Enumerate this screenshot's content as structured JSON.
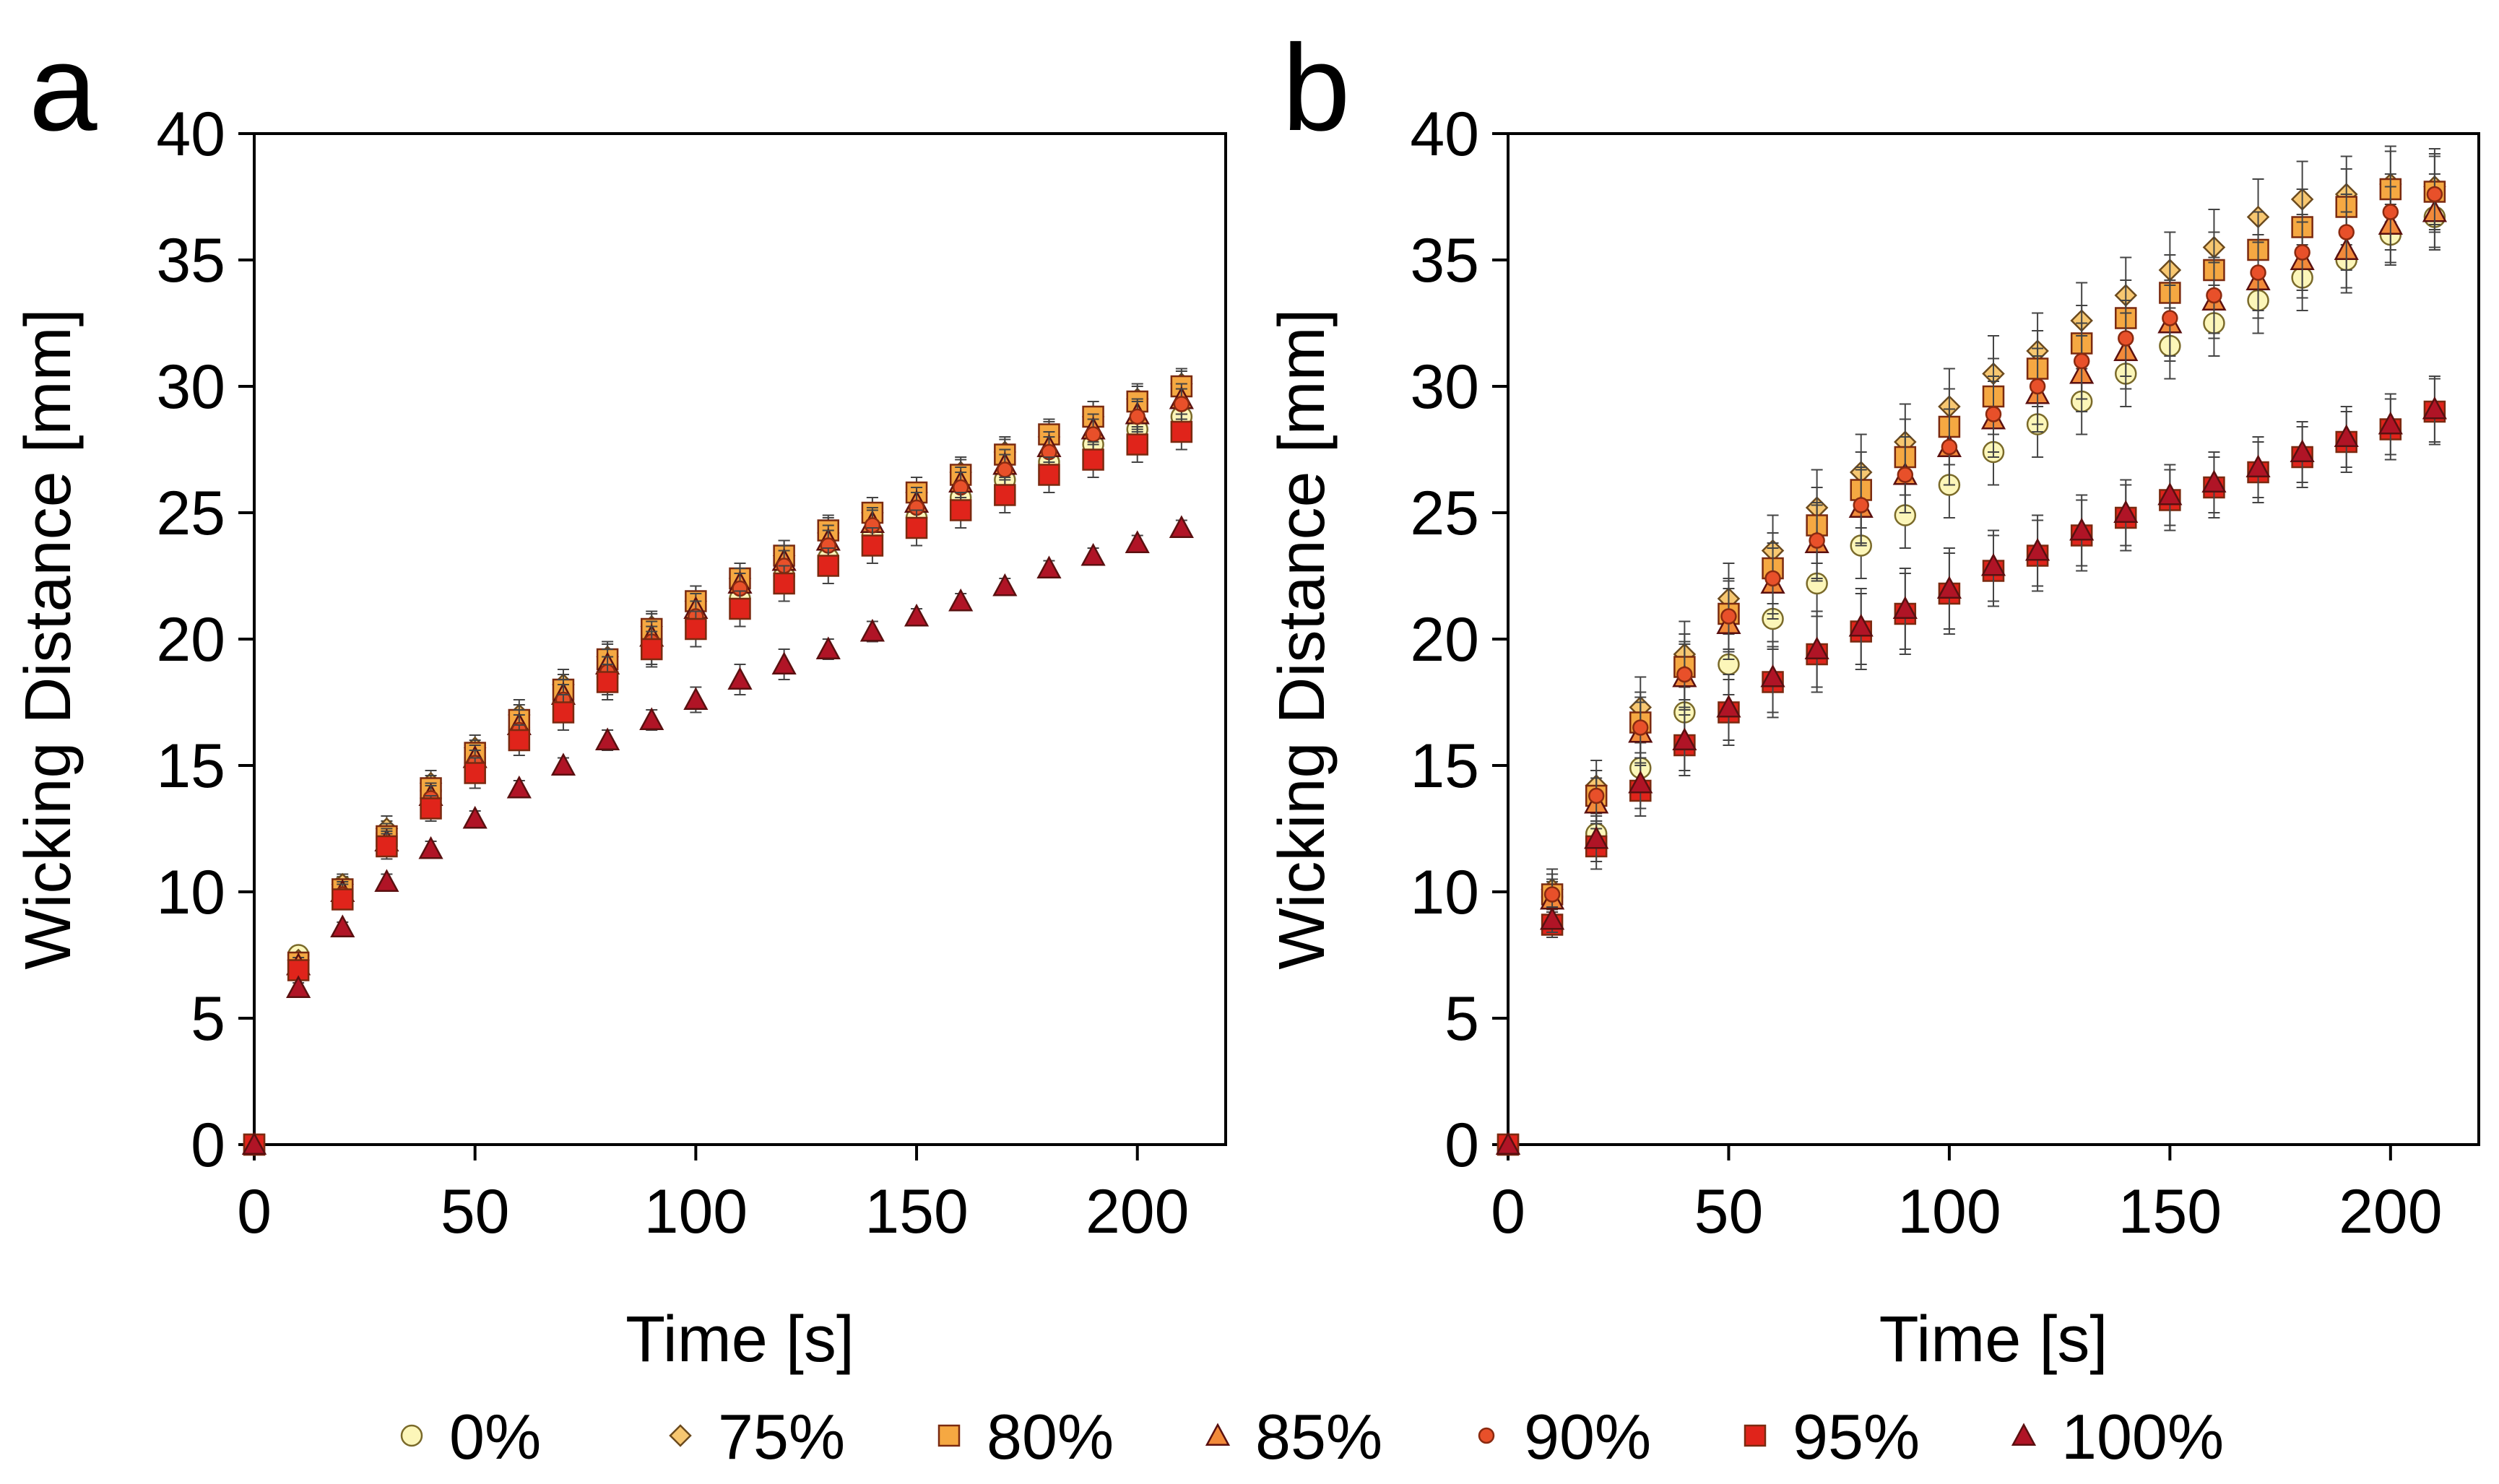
{
  "legend_items": [
    {
      "label": "0%",
      "marker": "circle",
      "color": "#fcf6b9"
    },
    {
      "label": "75%",
      "marker": "diamond",
      "color": "#f7c771"
    },
    {
      "label": "80%",
      "marker": "square",
      "color": "#f5a842"
    },
    {
      "label": "85%",
      "marker": "triangle",
      "color": "#f28a3a"
    },
    {
      "label": "90%",
      "marker": "small-circle",
      "color": "#e8502a"
    },
    {
      "label": "95%",
      "marker": "square",
      "color": "#e0241b"
    },
    {
      "label": "100%",
      "marker": "triangle",
      "color": "#b01426"
    }
  ],
  "chart_data": [
    {
      "type": "scatter",
      "panel_label": "a",
      "title": "",
      "xlabel": "Time [s]",
      "ylabel": "Wicking Distance [mm]",
      "xlim": [
        0,
        220
      ],
      "ylim": [
        0,
        40
      ],
      "xticks": [
        0,
        50,
        100,
        150,
        200
      ],
      "yticks": [
        0,
        5,
        10,
        15,
        20,
        25,
        30,
        35,
        40
      ],
      "x": [
        0,
        10,
        20,
        30,
        40,
        50,
        60,
        70,
        80,
        90,
        100,
        110,
        120,
        130,
        140,
        150,
        160,
        170,
        180,
        190,
        200,
        210
      ],
      "series": [
        {
          "name": "0%",
          "values": [
            0,
            7.5,
            10.2,
            12.3,
            14.0,
            15.3,
            16.5,
            17.5,
            18.5,
            19.7,
            20.7,
            21.6,
            22.5,
            23.2,
            24.1,
            24.8,
            25.6,
            26.3,
            27.0,
            27.7,
            28.3,
            28.8
          ],
          "error": [
            0,
            0.3,
            0.4,
            0.5,
            0.5,
            0.6,
            0.6,
            0.6,
            0.7,
            0.7,
            0.7,
            0.7,
            0.7,
            0.7,
            0.7,
            0.7,
            0.7,
            0.7,
            0.7,
            0.7,
            0.7,
            0.7
          ]
        },
        {
          "name": "75%",
          "values": [
            0,
            7.3,
            10.3,
            12.5,
            14.3,
            15.7,
            17.0,
            18.2,
            19.3,
            20.5,
            21.5,
            22.4,
            23.3,
            24.2,
            25.0,
            25.8,
            26.6,
            27.4,
            28.0,
            28.8,
            29.5,
            30.1
          ],
          "error": [
            0,
            0.3,
            0.4,
            0.5,
            0.5,
            0.5,
            0.6,
            0.6,
            0.6,
            0.6,
            0.6,
            0.6,
            0.6,
            0.6,
            0.6,
            0.6,
            0.6,
            0.6,
            0.6,
            0.6,
            0.6,
            0.6
          ]
        },
        {
          "name": "80%",
          "values": [
            0,
            7.2,
            10.1,
            12.2,
            14.1,
            15.5,
            16.8,
            18.0,
            19.2,
            20.4,
            21.5,
            22.4,
            23.3,
            24.3,
            25.0,
            25.8,
            26.5,
            27.3,
            28.1,
            28.8,
            29.4,
            30.0
          ],
          "error": [
            0,
            0.3,
            0.4,
            0.5,
            0.5,
            0.5,
            0.6,
            0.6,
            0.6,
            0.6,
            0.6,
            0.6,
            0.6,
            0.6,
            0.6,
            0.6,
            0.6,
            0.6,
            0.6,
            0.6,
            0.6,
            0.6
          ]
        },
        {
          "name": "85%",
          "values": [
            0,
            7.1,
            10.0,
            12.0,
            13.8,
            15.3,
            16.6,
            17.8,
            19.0,
            20.1,
            21.2,
            22.2,
            23.1,
            23.9,
            24.6,
            25.4,
            26.2,
            26.9,
            27.6,
            28.3,
            28.9,
            29.5
          ],
          "error": [
            0,
            0.3,
            0.4,
            0.5,
            0.5,
            0.5,
            0.6,
            0.6,
            0.6,
            0.6,
            0.6,
            0.6,
            0.6,
            0.6,
            0.6,
            0.6,
            0.6,
            0.6,
            0.6,
            0.6,
            0.6,
            0.6
          ]
        },
        {
          "name": "90%",
          "values": [
            0,
            7.0,
            9.9,
            11.9,
            13.7,
            15.1,
            16.4,
            17.6,
            18.7,
            19.9,
            20.9,
            22.0,
            22.9,
            23.7,
            24.5,
            25.2,
            26.0,
            26.7,
            27.4,
            28.1,
            28.8,
            29.3
          ],
          "error": [
            0,
            0.3,
            0.4,
            0.5,
            0.5,
            0.5,
            0.6,
            0.6,
            0.6,
            0.6,
            0.6,
            0.6,
            0.6,
            0.6,
            0.6,
            0.6,
            0.6,
            0.6,
            0.6,
            0.6,
            0.6,
            0.6
          ]
        },
        {
          "name": "95%",
          "values": [
            0,
            6.9,
            9.7,
            11.8,
            13.3,
            14.7,
            16.0,
            17.1,
            18.3,
            19.6,
            20.4,
            21.2,
            22.2,
            22.9,
            23.7,
            24.4,
            25.1,
            25.7,
            26.5,
            27.1,
            27.7,
            28.2
          ],
          "error": [
            0,
            0.3,
            0.4,
            0.5,
            0.5,
            0.6,
            0.6,
            0.7,
            0.7,
            0.7,
            0.7,
            0.7,
            0.7,
            0.7,
            0.7,
            0.7,
            0.7,
            0.7,
            0.7,
            0.7,
            0.7,
            0.7
          ]
        },
        {
          "name": "100%",
          "values": [
            0,
            6.2,
            8.6,
            10.4,
            11.7,
            12.9,
            14.1,
            15.0,
            16.0,
            16.8,
            17.6,
            18.4,
            19.0,
            19.6,
            20.3,
            20.9,
            21.5,
            22.1,
            22.8,
            23.3,
            23.8,
            24.4
          ],
          "error": [
            0,
            0.2,
            0.2,
            0.3,
            0.3,
            0.3,
            0.3,
            0.3,
            0.4,
            0.4,
            0.5,
            0.6,
            0.6,
            0.4,
            0.4,
            0.3,
            0.3,
            0.3,
            0.3,
            0.3,
            0.3,
            0.3
          ]
        }
      ]
    },
    {
      "type": "scatter",
      "panel_label": "b",
      "title": "",
      "xlabel": "Time [s]",
      "ylabel": "Wicking Distance [mm]",
      "xlim": [
        0,
        220
      ],
      "ylim": [
        0,
        40
      ],
      "xticks": [
        0,
        50,
        100,
        150,
        200
      ],
      "yticks": [
        0,
        5,
        10,
        15,
        20,
        25,
        30,
        35,
        40
      ],
      "x": [
        0,
        10,
        20,
        30,
        40,
        50,
        60,
        70,
        80,
        90,
        100,
        110,
        120,
        130,
        140,
        150,
        160,
        170,
        180,
        190,
        200,
        210
      ],
      "series": [
        {
          "name": "0%",
          "values": [
            0,
            9.8,
            12.3,
            14.9,
            17.1,
            19.0,
            20.8,
            22.2,
            23.7,
            24.9,
            26.1,
            27.4,
            28.5,
            29.4,
            30.5,
            31.6,
            32.5,
            33.4,
            34.3,
            35.0,
            36.0,
            36.7
          ],
          "error": [
            0,
            0.6,
            0.8,
            1.0,
            1.1,
            1.2,
            1.2,
            1.3,
            1.3,
            1.3,
            1.3,
            1.3,
            1.3,
            1.3,
            1.3,
            1.3,
            1.3,
            1.3,
            1.3,
            1.3,
            1.2,
            1.2
          ]
        },
        {
          "name": "75%",
          "values": [
            0,
            10.1,
            14.2,
            17.3,
            19.4,
            21.6,
            23.5,
            25.2,
            26.6,
            27.8,
            29.2,
            30.5,
            31.4,
            32.6,
            33.6,
            34.6,
            35.5,
            36.7,
            37.4,
            37.6,
            38.0,
            37.9
          ],
          "error": [
            0,
            0.8,
            1.0,
            1.2,
            1.3,
            1.4,
            1.4,
            1.5,
            1.5,
            1.5,
            1.5,
            1.5,
            1.5,
            1.5,
            1.5,
            1.5,
            1.5,
            1.5,
            1.5,
            1.5,
            1.5,
            1.5
          ]
        },
        {
          "name": "80%",
          "values": [
            0,
            9.9,
            13.8,
            16.7,
            18.9,
            21.0,
            22.8,
            24.5,
            25.9,
            27.2,
            28.4,
            29.6,
            30.7,
            31.7,
            32.7,
            33.7,
            34.6,
            35.4,
            36.3,
            37.1,
            37.8,
            37.7
          ],
          "error": [
            0,
            0.8,
            1.0,
            1.2,
            1.3,
            1.4,
            1.4,
            1.5,
            1.5,
            1.5,
            1.5,
            1.5,
            1.5,
            1.5,
            1.5,
            1.5,
            1.5,
            1.5,
            1.5,
            1.5,
            1.5,
            1.5
          ]
        },
        {
          "name": "85%",
          "values": [
            0,
            9.7,
            13.5,
            16.3,
            18.5,
            20.6,
            22.2,
            23.8,
            25.2,
            26.5,
            27.6,
            28.7,
            29.7,
            30.5,
            31.4,
            32.5,
            33.4,
            34.2,
            35.0,
            35.4,
            36.4,
            36.9
          ],
          "error": [
            0,
            0.8,
            1.0,
            1.2,
            1.3,
            1.4,
            1.4,
            1.5,
            1.5,
            1.5,
            1.5,
            1.5,
            1.5,
            1.5,
            1.5,
            1.5,
            1.5,
            1.5,
            1.5,
            1.5,
            1.5,
            1.5
          ]
        },
        {
          "name": "90%",
          "values": [
            0,
            9.9,
            13.8,
            16.5,
            18.6,
            20.9,
            22.4,
            23.9,
            25.3,
            26.5,
            27.6,
            28.9,
            30.0,
            31.0,
            31.9,
            32.7,
            33.6,
            34.5,
            35.3,
            36.1,
            36.9,
            37.6
          ],
          "error": [
            0,
            0.8,
            1.0,
            1.2,
            1.3,
            1.4,
            1.4,
            1.5,
            1.5,
            1.5,
            1.5,
            1.5,
            1.5,
            1.5,
            1.5,
            1.5,
            1.5,
            1.5,
            1.5,
            1.5,
            1.5,
            1.5
          ]
        },
        {
          "name": "95%",
          "values": [
            0,
            8.7,
            11.8,
            14.0,
            15.8,
            17.1,
            18.3,
            19.4,
            20.3,
            21.0,
            21.8,
            22.7,
            23.3,
            24.1,
            24.8,
            25.5,
            26.0,
            26.6,
            27.2,
            27.8,
            28.3,
            29.0
          ],
          "error": [
            0,
            0.5,
            0.9,
            1.0,
            1.2,
            1.3,
            1.4,
            1.5,
            1.5,
            1.6,
            1.6,
            1.4,
            1.4,
            1.4,
            1.3,
            1.2,
            1.2,
            1.2,
            1.2,
            1.2,
            1.2,
            1.3
          ]
        },
        {
          "name": "100%",
          "values": [
            0,
            8.9,
            12.1,
            14.3,
            16.0,
            17.3,
            18.5,
            19.6,
            20.5,
            21.2,
            22.0,
            22.9,
            23.5,
            24.3,
            25.0,
            25.7,
            26.2,
            26.8,
            27.4,
            28.0,
            28.5,
            29.1
          ],
          "error": [
            0,
            0.5,
            0.9,
            1.0,
            1.2,
            1.3,
            1.4,
            1.5,
            1.5,
            1.6,
            1.6,
            1.4,
            1.4,
            1.4,
            1.3,
            1.2,
            1.2,
            1.2,
            1.2,
            1.2,
            1.2,
            1.3
          ]
        }
      ]
    }
  ]
}
